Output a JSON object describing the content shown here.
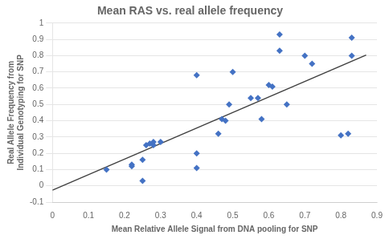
{
  "chart_data": {
    "type": "scatter",
    "title": "Mean RAS vs. real allele frequency",
    "x_label": "Mean Relative Allele Signal from DNA pooling for SNP",
    "y_label": "Real Allele Frequency from\nIndividual Genotyping for SNP",
    "xlim": [
      0,
      0.9
    ],
    "ylim": [
      -0.1,
      1
    ],
    "xticks": [
      0,
      0.1,
      0.2,
      0.3,
      0.4,
      0.5,
      0.6,
      0.7,
      0.8,
      0.9
    ],
    "yticks": [
      -0.1,
      0,
      0.1,
      0.2,
      0.3,
      0.4,
      0.5,
      0.6,
      0.7,
      0.8,
      0.9,
      1
    ],
    "grid": "y",
    "series": [
      {
        "type": "scatter",
        "color": "#4472C4",
        "marker": "diamond",
        "x": [
          0.15,
          0.22,
          0.22,
          0.25,
          0.25,
          0.26,
          0.27,
          0.28,
          0.28,
          0.3,
          0.4,
          0.4,
          0.4,
          0.46,
          0.47,
          0.48,
          0.49,
          0.5,
          0.55,
          0.57,
          0.58,
          0.6,
          0.61,
          0.63,
          0.63,
          0.65,
          0.7,
          0.72,
          0.8,
          0.82,
          0.83,
          0.83
        ],
        "values": [
          0.1,
          0.12,
          0.13,
          0.03,
          0.16,
          0.25,
          0.26,
          0.25,
          0.27,
          0.27,
          0.2,
          0.11,
          0.68,
          0.32,
          0.41,
          0.4,
          0.5,
          0.7,
          0.54,
          0.54,
          0.41,
          0.62,
          0.61,
          0.93,
          0.83,
          0.5,
          0.8,
          0.75,
          0.31,
          0.32,
          0.91,
          0.8
        ]
      },
      {
        "type": "line",
        "color": "#404040",
        "line_style": "solid",
        "x": [
          0,
          0.87
        ],
        "values": [
          -0.0269,
          0.8036
        ]
      }
    ]
  }
}
